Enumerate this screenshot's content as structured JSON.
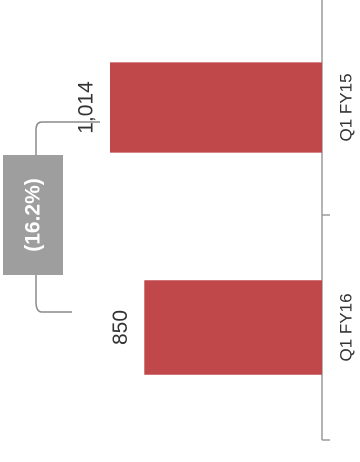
{
  "chart_data": {
    "type": "bar",
    "orientation": "rotated-90-ccw",
    "categories": [
      "Q1  FY15",
      "Q1  FY16"
    ],
    "values": [
      1014,
      850
    ],
    "value_labels": [
      "1,014",
      "850"
    ],
    "change_label": "(16.2%)",
    "value_range": [
      0,
      1014
    ],
    "grid": false,
    "colors": {
      "bar": "#c0474a",
      "badge": "#9e9e9e",
      "badge_text": "#ffffff",
      "bracket": "#8a8a8a",
      "axis": "#9a9a9a"
    }
  }
}
